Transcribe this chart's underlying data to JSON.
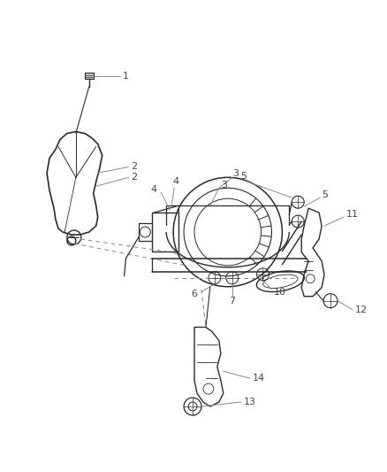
{
  "bg_color": "#ffffff",
  "line_color": "#2a2a2a",
  "label_color": "#555555",
  "figsize": [
    4.38,
    5.33
  ],
  "dpi": 100
}
